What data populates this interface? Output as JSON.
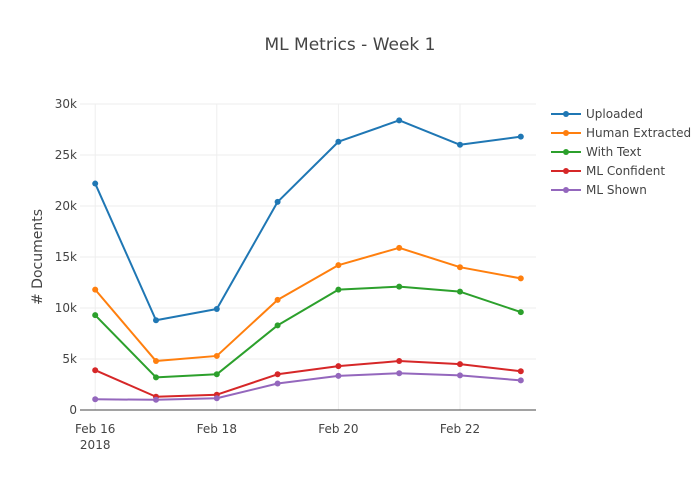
{
  "chart_data": {
    "type": "line",
    "title": "ML Metrics - Week 1",
    "xlabel": "",
    "ylabel": "# Documents",
    "x": [
      "2018-02-16",
      "2018-02-17",
      "2018-02-18",
      "2018-02-19",
      "2018-02-20",
      "2018-02-21",
      "2018-02-22",
      "2018-02-23"
    ],
    "x_ticks": [
      {
        "label": "Feb 16",
        "sublabel": "2018",
        "day": 0
      },
      {
        "label": "Feb 18",
        "sublabel": "",
        "day": 2
      },
      {
        "label": "Feb 20",
        "sublabel": "",
        "day": 4
      },
      {
        "label": "Feb 22",
        "sublabel": "",
        "day": 6
      }
    ],
    "y_ticks": [
      {
        "label": "0",
        "value": 0
      },
      {
        "label": "5k",
        "value": 5000
      },
      {
        "label": "10k",
        "value": 10000
      },
      {
        "label": "15k",
        "value": 15000
      },
      {
        "label": "20k",
        "value": 20000
      },
      {
        "label": "25k",
        "value": 25000
      },
      {
        "label": "30k",
        "value": 30000
      }
    ],
    "xlim": [
      -0.25,
      7.25
    ],
    "ylim": [
      0,
      30000
    ],
    "grid": true,
    "legend_position": "right",
    "series": [
      {
        "name": "Uploaded",
        "color": "#1f77b4",
        "values": [
          22200,
          8800,
          9900,
          20400,
          26300,
          28400,
          26000,
          26800
        ]
      },
      {
        "name": "Human Extracted",
        "color": "#ff7f0e",
        "values": [
          11800,
          4800,
          5300,
          10800,
          14200,
          15900,
          14000,
          12900
        ]
      },
      {
        "name": "With Text",
        "color": "#2ca02c",
        "values": [
          9300,
          3200,
          3500,
          8300,
          11800,
          12100,
          11600,
          9600
        ]
      },
      {
        "name": "ML Confident",
        "color": "#d62728",
        "values": [
          3900,
          1300,
          1500,
          3500,
          4300,
          4800,
          4500,
          3800
        ]
      },
      {
        "name": "ML Shown",
        "color": "#9467bd",
        "values": [
          1050,
          1000,
          1150,
          2600,
          3350,
          3600,
          3400,
          2900
        ]
      }
    ]
  }
}
